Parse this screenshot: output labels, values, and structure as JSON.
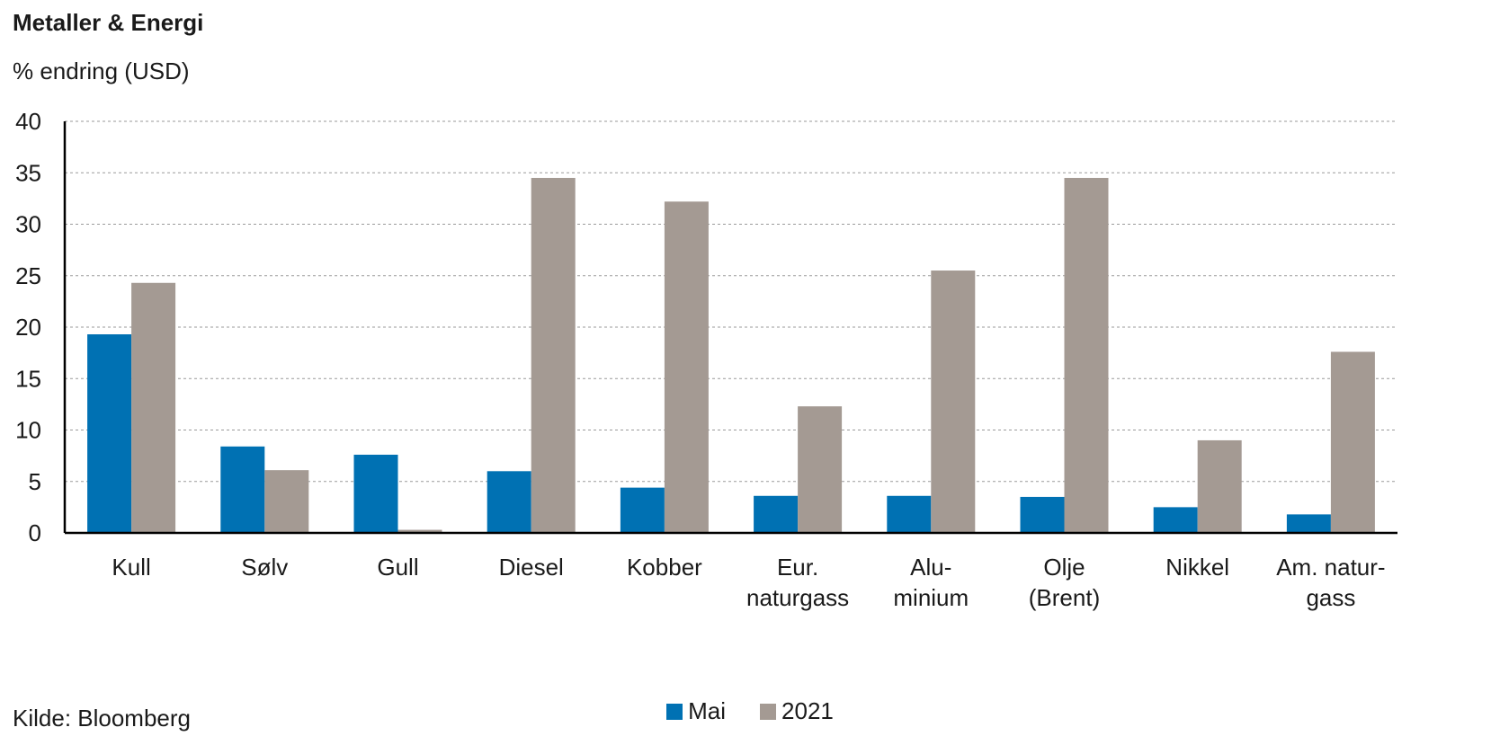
{
  "title": "Metaller & Energi",
  "subtitle": "% endring (USD)",
  "source": "Kilde: Bloomberg",
  "colors": {
    "mai": "#0071b3",
    "y2021": "#a49a93",
    "grid": "#9a9a9a",
    "axis": "#000000"
  },
  "chart_data": {
    "type": "bar",
    "categories": [
      [
        "Kull"
      ],
      [
        "Sølv"
      ],
      [
        "Gull"
      ],
      [
        "Diesel"
      ],
      [
        "Kobber"
      ],
      [
        "Eur.",
        "naturgass"
      ],
      [
        "Alu-",
        "minium"
      ],
      [
        "Olje",
        "(Brent)"
      ],
      [
        "Nikkel"
      ],
      [
        "Am. natur-",
        "gass"
      ]
    ],
    "series": [
      {
        "name": "Mai",
        "values": [
          19.3,
          8.4,
          7.6,
          6.0,
          4.4,
          3.6,
          3.6,
          3.5,
          2.5,
          1.8
        ]
      },
      {
        "name": "2021",
        "values": [
          24.3,
          6.1,
          0.3,
          34.5,
          32.2,
          12.3,
          25.5,
          34.5,
          9.0,
          17.6
        ]
      }
    ],
    "ylim": [
      0,
      40
    ],
    "yticks": [
      0,
      5,
      10,
      15,
      20,
      25,
      30,
      35,
      40
    ],
    "grid": true,
    "legend": "bottom-center"
  }
}
